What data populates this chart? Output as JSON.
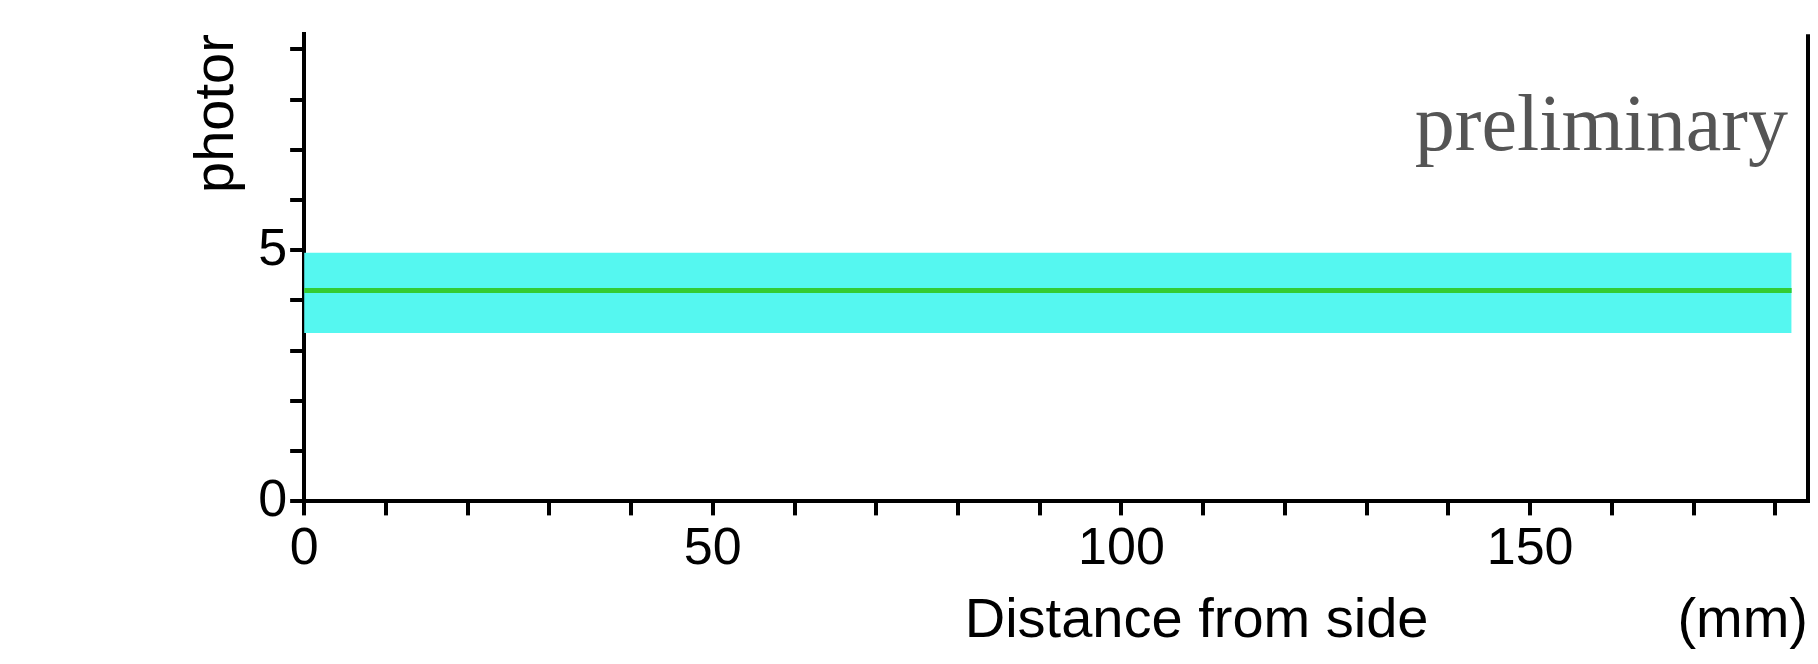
{
  "chart_data": {
    "type": "line",
    "xlabel": "Distance from side                (mm)",
    "ylabel": "photor",
    "annotations": [
      "preliminary"
    ],
    "series": [
      {
        "color": "#33cc33",
        "x": [
          0,
          182
        ],
        "values": [
          4.2,
          4.2
        ],
        "lower": [
          3.35,
          3.35
        ],
        "upper": [
          4.95,
          4.95
        ]
      }
    ],
    "xlim": [
      0,
      184
    ],
    "xticks": [
      0,
      {
        "value": 10,
        "label": null
      },
      {
        "value": 20,
        "label": null
      },
      {
        "value": 30,
        "label": null
      },
      {
        "value": 40,
        "label": null
      },
      50,
      {
        "value": 60,
        "label": null
      },
      {
        "value": 70,
        "label": null
      },
      {
        "value": 80,
        "label": null
      },
      {
        "value": 90,
        "label": null
      },
      100,
      {
        "value": 110,
        "label": null
      },
      {
        "value": 120,
        "label": null
      },
      {
        "value": 130,
        "label": null
      },
      {
        "value": 140,
        "label": null
      },
      150,
      {
        "value": 160,
        "label": null
      },
      {
        "value": 170,
        "label": null
      },
      {
        "value": 180,
        "label": null
      }
    ],
    "ylim": [
      0,
      9.3
    ],
    "yticks": [
      0,
      {
        "value": 1,
        "label": null
      },
      {
        "value": 2,
        "label": null
      },
      {
        "value": 3,
        "label": null
      },
      {
        "value": 4,
        "label": null
      },
      5,
      {
        "value": 6,
        "label": null
      },
      {
        "value": 7,
        "label": null
      },
      {
        "value": 8,
        "label": null
      },
      {
        "value": 9,
        "label": null
      }
    ],
    "grid": false,
    "legend": false,
    "marker": "none",
    "line_style": "solid"
  }
}
